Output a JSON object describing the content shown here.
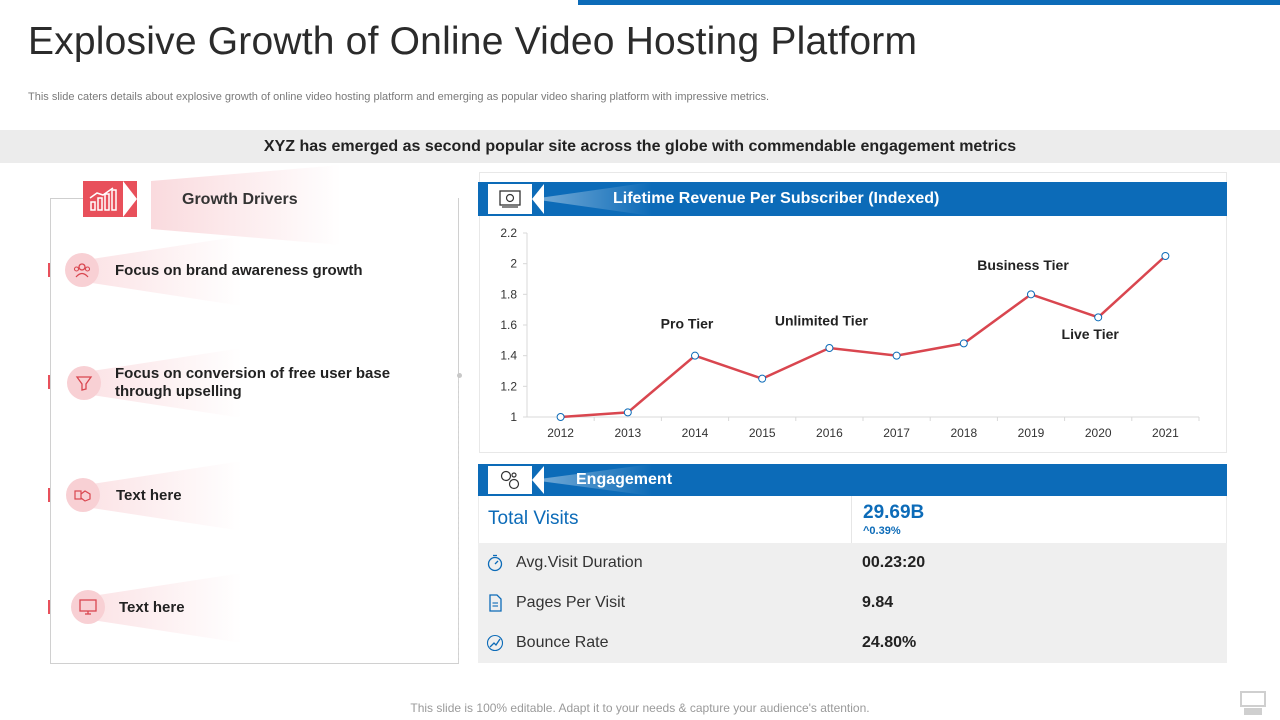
{
  "title": "Explosive Growth of Online Video Hosting Platform",
  "subtitle": "This slide caters details about explosive growth of online video hosting platform and emerging as popular video sharing platform with impressive metrics.",
  "banner": "XYZ has emerged as second popular site across the globe with commendable engagement metrics",
  "growth_drivers": {
    "header": "Growth Drivers",
    "items": [
      {
        "label": "Focus on brand awareness growth",
        "icon": "people-icon"
      },
      {
        "label": "Focus on conversion of free user base through upselling",
        "icon": "funnel-icon"
      },
      {
        "label": "Text here",
        "icon": "handshake-icon"
      },
      {
        "label": "Text here",
        "icon": "monitor-icon"
      }
    ]
  },
  "revenue": {
    "header": "Lifetime Revenue Per Subscriber",
    "header_suffix": "(Indexed)"
  },
  "chart_data": {
    "type": "line",
    "title": "Lifetime Revenue Per Subscriber (Indexed)",
    "x": [
      "2012",
      "2013",
      "2014",
      "2015",
      "2016",
      "2017",
      "2018",
      "2019",
      "2020",
      "2021"
    ],
    "series": [
      {
        "values": [
          1.0,
          1.03,
          1.4,
          1.25,
          1.45,
          1.4,
          1.48,
          1.8,
          1.65,
          2.05
        ],
        "color": "#d9464f"
      }
    ],
    "ylim": [
      1,
      2.2
    ],
    "yticks": [
      "1",
      "1.2",
      "1.4",
      "1.6",
      "1.8",
      "2",
      "2.2"
    ],
    "annotations": [
      {
        "text": "Pro Tier",
        "x": "2014",
        "y": 1.61
      },
      {
        "text": "Unlimited Tier",
        "x": "2016",
        "y": 1.63
      },
      {
        "text": "Business Tier",
        "x": "2019",
        "y": 1.99
      },
      {
        "text": "Live Tier",
        "x": "2020",
        "y": 1.54
      }
    ],
    "grid": false
  },
  "engagement": {
    "header": "Engagement",
    "total_label": "Total Visits",
    "total_value": "29.69B",
    "total_change": "^0.39%",
    "rows": [
      {
        "label": "Avg.Visit Duration",
        "value": "00.23:20",
        "icon": "stopwatch-icon"
      },
      {
        "label": "Pages Per Visit",
        "value": "9.84",
        "icon": "page-icon"
      },
      {
        "label": "Bounce Rate",
        "value": "24.80%",
        "icon": "bounce-icon"
      }
    ]
  },
  "footer": "This slide is 100% editable. Adapt it to your needs & capture your audience's attention.",
  "colors": {
    "accent_blue": "#0c6bb8",
    "accent_red": "#e8505b",
    "line_red": "#d9464f"
  }
}
